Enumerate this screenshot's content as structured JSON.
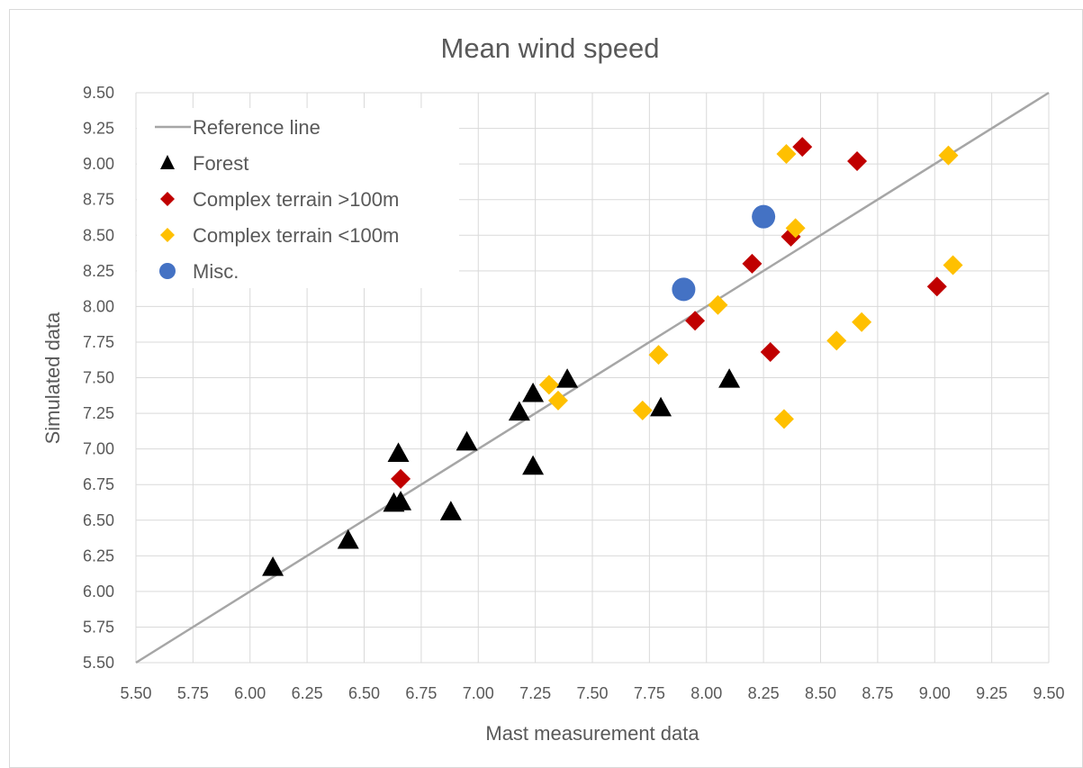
{
  "chart_data": {
    "type": "scatter",
    "title": "Mean wind speed",
    "xlabel": "Mast measurement data",
    "ylabel": "Simulated data",
    "xlim": [
      5.5,
      9.5
    ],
    "ylim": [
      5.5,
      9.5
    ],
    "xticks": [
      "5.50",
      "5.75",
      "6.00",
      "6.25",
      "6.50",
      "6.75",
      "7.00",
      "7.25",
      "7.50",
      "7.75",
      "8.00",
      "8.25",
      "8.50",
      "8.75",
      "9.00",
      "9.25",
      "9.50"
    ],
    "yticks": [
      "5.50",
      "5.75",
      "6.00",
      "6.25",
      "6.50",
      "6.75",
      "7.00",
      "7.25",
      "7.50",
      "7.75",
      "8.00",
      "8.25",
      "8.50",
      "8.75",
      "9.00",
      "9.25",
      "9.50"
    ],
    "grid": true,
    "legend_position": "top-left",
    "reference_line": {
      "name": "Reference line",
      "color": "#A6A6A6",
      "points": [
        [
          5.5,
          5.5
        ],
        [
          9.5,
          9.5
        ]
      ]
    },
    "series": [
      {
        "name": "Forest",
        "marker": "triangle",
        "color": "#000000",
        "points": [
          [
            6.1,
            6.17
          ],
          [
            6.43,
            6.36
          ],
          [
            6.63,
            6.62
          ],
          [
            6.66,
            6.63
          ],
          [
            6.65,
            6.97
          ],
          [
            6.88,
            6.56
          ],
          [
            6.95,
            7.05
          ],
          [
            7.18,
            7.26
          ],
          [
            7.24,
            7.39
          ],
          [
            7.24,
            6.88
          ],
          [
            7.39,
            7.49
          ],
          [
            7.8,
            7.29
          ],
          [
            8.1,
            7.49
          ]
        ]
      },
      {
        "name": "Complex terrain >100m",
        "marker": "diamond",
        "color": "#C00000",
        "points": [
          [
            6.66,
            6.79
          ],
          [
            7.95,
            7.9
          ],
          [
            8.2,
            8.3
          ],
          [
            8.28,
            7.68
          ],
          [
            8.37,
            8.49
          ],
          [
            8.42,
            9.12
          ],
          [
            8.66,
            9.02
          ],
          [
            9.01,
            8.14
          ]
        ]
      },
      {
        "name": "Complex terrain <100m",
        "marker": "diamond",
        "color": "#FFC000",
        "points": [
          [
            7.31,
            7.45
          ],
          [
            7.35,
            7.34
          ],
          [
            7.72,
            7.27
          ],
          [
            7.79,
            7.66
          ],
          [
            8.05,
            8.01
          ],
          [
            8.34,
            7.21
          ],
          [
            8.35,
            9.07
          ],
          [
            8.39,
            8.55
          ],
          [
            8.57,
            7.76
          ],
          [
            8.68,
            7.89
          ],
          [
            9.06,
            9.06
          ],
          [
            9.08,
            8.29
          ]
        ]
      },
      {
        "name": "Misc.",
        "marker": "circle",
        "color": "#4472C4",
        "points": [
          [
            7.9,
            8.12
          ],
          [
            8.25,
            8.63
          ]
        ]
      }
    ]
  }
}
